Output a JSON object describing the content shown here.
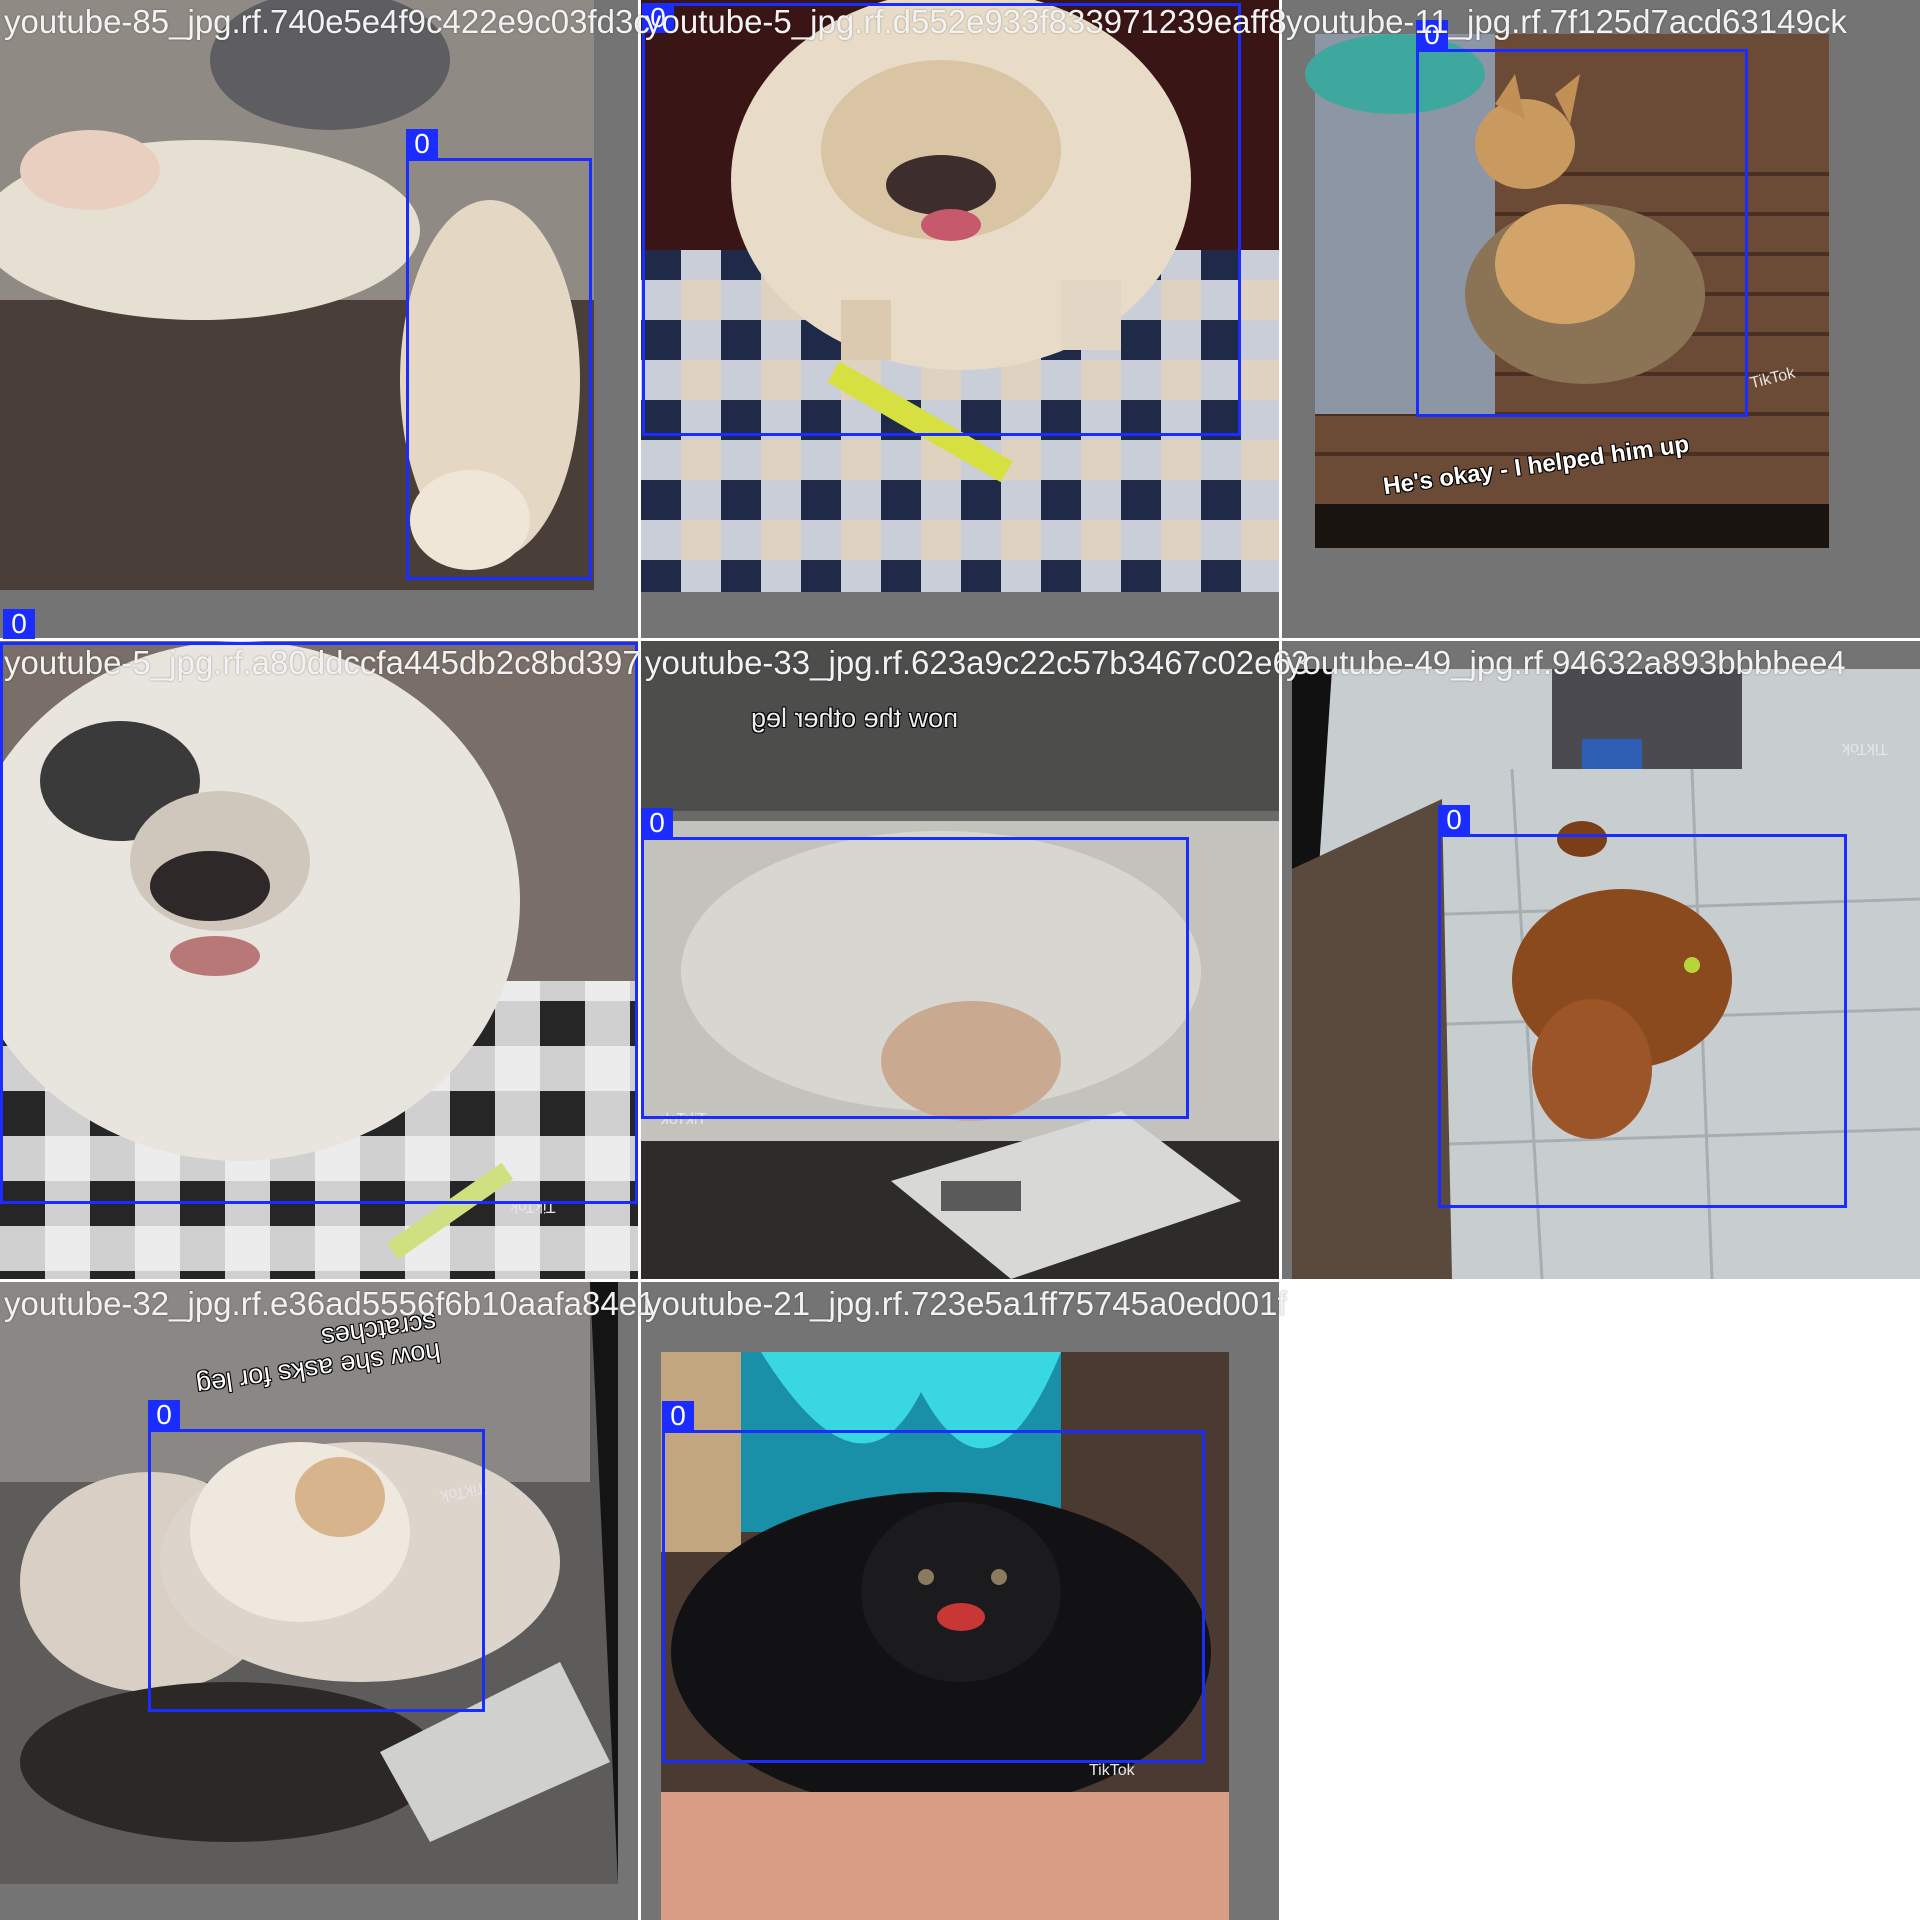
{
  "grid": {
    "background": "#747474",
    "box_color": "#1a2cff",
    "tiles": [
      {
        "title": "youtube-85_jpg.rf.740e5e4f9c422e9c03fd3c",
        "box_label": "0"
      },
      {
        "title": "youtube-5_jpg.rf.d552e933f833971239eaff8",
        "box_label": "0"
      },
      {
        "title": "youtube-11_jpg.rf.7f125d7acd63149ck",
        "box_label": "0",
        "caption": "He's okay - I helped him up",
        "watermark": "TikTok"
      },
      {
        "title": "youtube-5_jpg.rf.a80ddccfa445db2c8bd397",
        "box_label": "0",
        "watermark": "TikTok"
      },
      {
        "title": "youtube-33_jpg.rf.623a9c22c57b3467c02e63",
        "box_label": "0",
        "caption": "now the other leg",
        "watermark": "TikTok"
      },
      {
        "title": "youtube-49_jpg.rf.94632a893bbbbee4",
        "box_label": "0",
        "watermark": "TikTok"
      },
      {
        "title": "youtube-32_jpg.rf.e36ad5556f6b10aafa84e1",
        "box_label": "0",
        "caption": "how she asks for leg scratches",
        "watermark": "TikTok"
      },
      {
        "title": "youtube-21_jpg.rf.723e5a1ff75745a0ed001f",
        "box_label": "0",
        "watermark": "TikTok"
      }
    ]
  }
}
